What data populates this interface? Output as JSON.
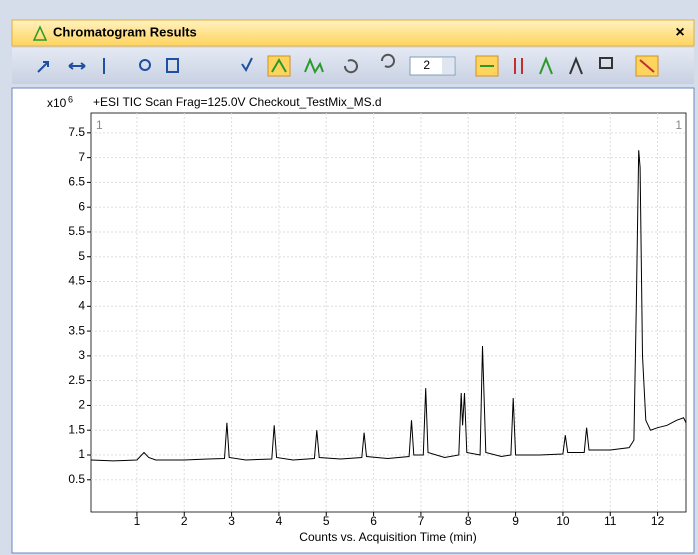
{
  "window": {
    "title": "Chromatogram Results",
    "close": "×"
  },
  "toolbar": {
    "dropdown_value": "2"
  },
  "chart_data": {
    "type": "line",
    "title": "+ESI TIC Scan Frag=125.0V Checkout_TestMix_MS.d",
    "y_multiplier": "x10",
    "y_exponent": "6",
    "corner_labels": [
      "1",
      "1"
    ],
    "xlabel": "Counts vs. Acquisition Time (min)",
    "xlim": [
      0.03,
      12.6
    ],
    "ylim": [
      -0.15,
      7.9
    ],
    "xticks": [
      1,
      2,
      3,
      4,
      5,
      6,
      7,
      8,
      9,
      10,
      11,
      12
    ],
    "yticks": [
      0.5,
      1,
      1.5,
      2,
      2.5,
      3,
      3.5,
      4,
      4.5,
      5,
      5.5,
      6,
      6.5,
      7,
      7.5
    ],
    "grid": true,
    "series": [
      {
        "color": "#000000",
        "x": [
          0.03,
          0.5,
          1.0,
          1.1,
          1.15,
          1.25,
          1.4,
          2.0,
          2.5,
          2.85,
          2.9,
          2.95,
          3.3,
          3.85,
          3.9,
          3.95,
          4.3,
          4.75,
          4.8,
          4.85,
          5.3,
          5.75,
          5.8,
          5.85,
          6.3,
          6.75,
          6.8,
          6.85,
          7.05,
          7.1,
          7.15,
          7.5,
          7.8,
          7.85,
          7.88,
          7.92,
          7.97,
          8.25,
          8.3,
          8.37,
          8.7,
          8.9,
          8.95,
          9.0,
          9.5,
          10.0,
          10.05,
          10.1,
          10.45,
          10.5,
          10.55,
          11.0,
          11.4,
          11.5,
          11.55,
          11.6,
          11.63,
          11.68,
          11.75,
          11.85,
          12.0,
          12.2,
          12.4,
          12.55,
          12.6
        ],
        "values": [
          0.9,
          0.88,
          0.9,
          1.0,
          1.05,
          0.95,
          0.9,
          0.9,
          0.92,
          0.93,
          1.65,
          0.95,
          0.9,
          0.92,
          1.6,
          0.95,
          0.9,
          0.93,
          1.5,
          0.95,
          0.92,
          0.95,
          1.45,
          0.97,
          0.93,
          0.97,
          1.7,
          1.0,
          1.0,
          2.35,
          1.05,
          0.95,
          1.0,
          2.25,
          1.6,
          2.25,
          1.05,
          1.0,
          3.2,
          1.05,
          0.97,
          1.0,
          2.15,
          1.0,
          1.0,
          1.02,
          1.4,
          1.05,
          1.05,
          1.55,
          1.1,
          1.1,
          1.15,
          1.3,
          4.0,
          7.15,
          6.8,
          3.0,
          1.7,
          1.5,
          1.55,
          1.6,
          1.7,
          1.75,
          1.65
        ]
      }
    ]
  }
}
